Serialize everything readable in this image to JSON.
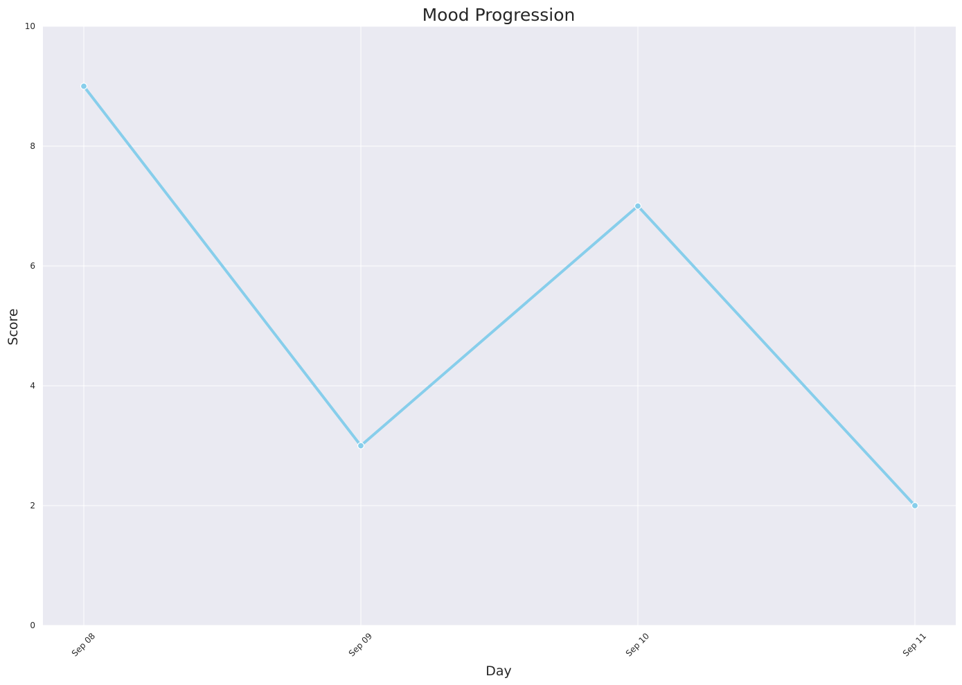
{
  "chart_data": {
    "type": "line",
    "title": "Mood Progression",
    "xlabel": "Day",
    "ylabel": "Score",
    "categories": [
      "Sep 08",
      "Sep 09",
      "Sep 10",
      "Sep 11"
    ],
    "series": [
      {
        "values": [
          9,
          3,
          7,
          2
        ]
      }
    ],
    "ylim": [
      0,
      10
    ],
    "yticks": [
      0,
      2,
      4,
      6,
      8,
      10
    ],
    "grid": true,
    "legend": "none",
    "colors": {
      "line": "#87ceeb",
      "plot_background": "#eaeaf2",
      "grid": "#ffffff",
      "text": "#262626"
    }
  }
}
